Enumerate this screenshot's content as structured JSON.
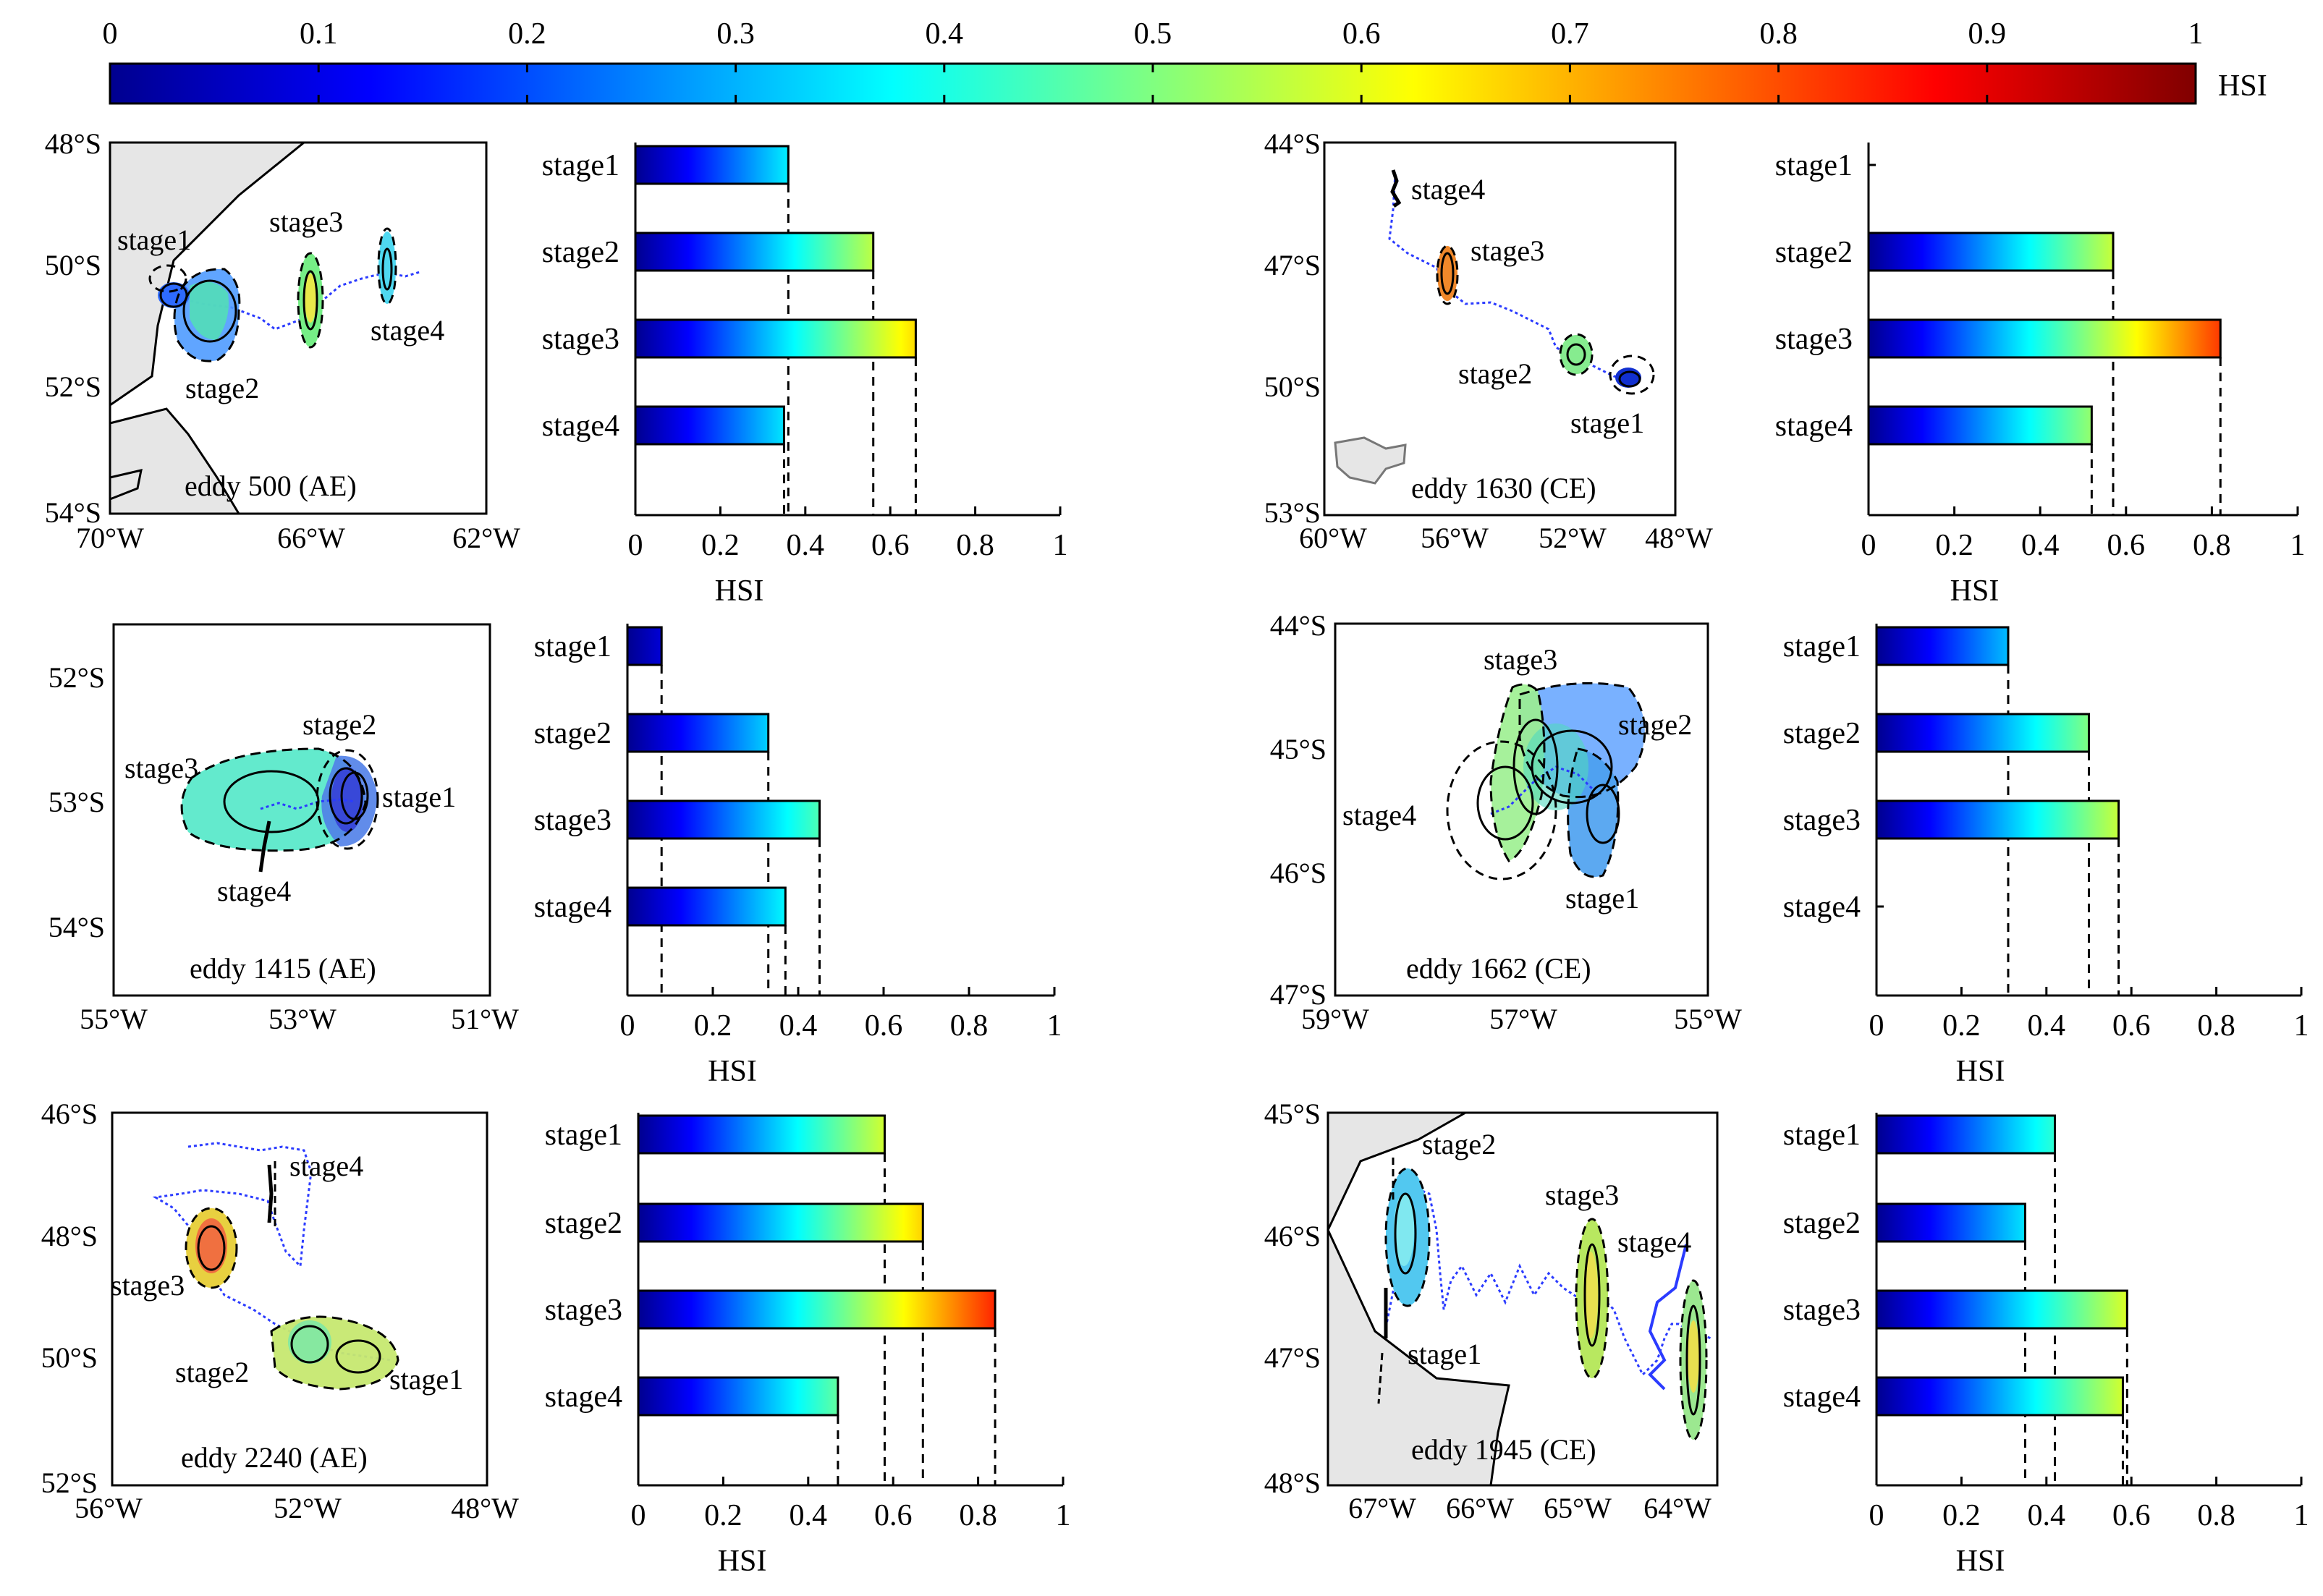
{
  "colorbar": {
    "label": "HSI",
    "ticks": [
      "0",
      "0.1",
      "0.2",
      "0.3",
      "0.4",
      "0.5",
      "0.6",
      "0.7",
      "0.8",
      "0.9",
      "1"
    ],
    "colormap": [
      "#00008f",
      "#0000ff",
      "#0080ff",
      "#00ffff",
      "#80ff80",
      "#ffff00",
      "#ff8000",
      "#ff0000",
      "#800000"
    ]
  },
  "panels": [
    {
      "map": {
        "title": "eddy 500 (AE)",
        "yticks": [
          "48°S",
          "50°S",
          "52°S",
          "54°S"
        ],
        "xticks": [
          "70°W",
          "66°W",
          "62°W"
        ],
        "labels": [
          "stage1",
          "stage2",
          "stage3",
          "stage4"
        ]
      },
      "chart_data": {
        "type": "bar",
        "categories": [
          "stage1",
          "stage2",
          "stage3",
          "stage4"
        ],
        "values": [
          0.36,
          0.56,
          0.66,
          0.35
        ],
        "xlabel": "HSI",
        "xticks": [
          "0",
          "0.2",
          "0.4",
          "0.6",
          "0.8",
          "1"
        ],
        "xlim": [
          0,
          1
        ]
      }
    },
    {
      "map": {
        "title": "eddy 1630 (CE)",
        "yticks": [
          "44°S",
          "47°S",
          "50°S",
          "53°S"
        ],
        "xticks": [
          "60°W",
          "56°W",
          "52°W",
          "48°W"
        ],
        "labels": [
          "stage4",
          "stage3",
          "stage2",
          "stage1"
        ]
      },
      "chart_data": {
        "type": "bar",
        "categories": [
          "stage1",
          "stage2",
          "stage3",
          "stage4"
        ],
        "values": [
          0,
          0.57,
          0.82,
          0.52
        ],
        "xlabel": "HSI",
        "xticks": [
          "0",
          "0.2",
          "0.4",
          "0.6",
          "0.8",
          "1"
        ],
        "xlim": [
          0,
          1
        ]
      }
    },
    {
      "map": {
        "title": "eddy 1415 (AE)",
        "yticks": [
          "52°S",
          "53°S",
          "54°S"
        ],
        "xticks": [
          "55°W",
          "53°W",
          "51°W"
        ],
        "labels": [
          "stage2",
          "stage3",
          "stage1",
          "stage4"
        ]
      },
      "chart_data": {
        "type": "bar",
        "categories": [
          "stage1",
          "stage2",
          "stage3",
          "stage4"
        ],
        "values": [
          0.08,
          0.33,
          0.45,
          0.37
        ],
        "xlabel": "HSI",
        "xticks": [
          "0",
          "0.2",
          "0.4",
          "0.6",
          "0.8",
          "1"
        ],
        "xlim": [
          0,
          1
        ]
      }
    },
    {
      "map": {
        "title": "eddy 1662 (CE)",
        "yticks": [
          "44°S",
          "45°S",
          "46°S",
          "47°S"
        ],
        "xticks": [
          "59°W",
          "57°W",
          "55°W"
        ],
        "labels": [
          "stage3",
          "stage2",
          "stage4",
          "stage1"
        ]
      },
      "chart_data": {
        "type": "bar",
        "categories": [
          "stage1",
          "stage2",
          "stage3",
          "stage4"
        ],
        "values": [
          0.31,
          0.5,
          0.57,
          0
        ],
        "xlabel": "HSI",
        "xticks": [
          "0",
          "0.2",
          "0.4",
          "0.6",
          "0.8",
          "1"
        ],
        "xlim": [
          0,
          1
        ]
      }
    },
    {
      "map": {
        "title": "eddy 2240 (AE)",
        "yticks": [
          "46°S",
          "48°S",
          "50°S",
          "52°S"
        ],
        "xticks": [
          "56°W",
          "52°W",
          "48°W"
        ],
        "labels": [
          "stage4",
          "stage3",
          "stage2",
          "stage1"
        ]
      },
      "chart_data": {
        "type": "bar",
        "categories": [
          "stage1",
          "stage2",
          "stage3",
          "stage4"
        ],
        "values": [
          0.58,
          0.67,
          0.84,
          0.47
        ],
        "xlabel": "HSI",
        "xticks": [
          "0",
          "0.2",
          "0.4",
          "0.6",
          "0.8",
          "1"
        ],
        "xlim": [
          0,
          1
        ]
      }
    },
    {
      "map": {
        "title": "eddy 1945 (CE)",
        "yticks": [
          "45°S",
          "46°S",
          "47°S",
          "48°S"
        ],
        "xticks": [
          "67°W",
          "66°W",
          "65°W",
          "64°W"
        ],
        "labels": [
          "stage2",
          "stage3",
          "stage4",
          "stage1"
        ]
      },
      "chart_data": {
        "type": "bar",
        "categories": [
          "stage1",
          "stage2",
          "stage3",
          "stage4"
        ],
        "values": [
          0.42,
          0.35,
          0.59,
          0.58
        ],
        "xlabel": "HSI",
        "xticks": [
          "0",
          "0.2",
          "0.4",
          "0.6",
          "0.8",
          "1"
        ],
        "xlim": [
          0,
          1
        ]
      }
    }
  ]
}
